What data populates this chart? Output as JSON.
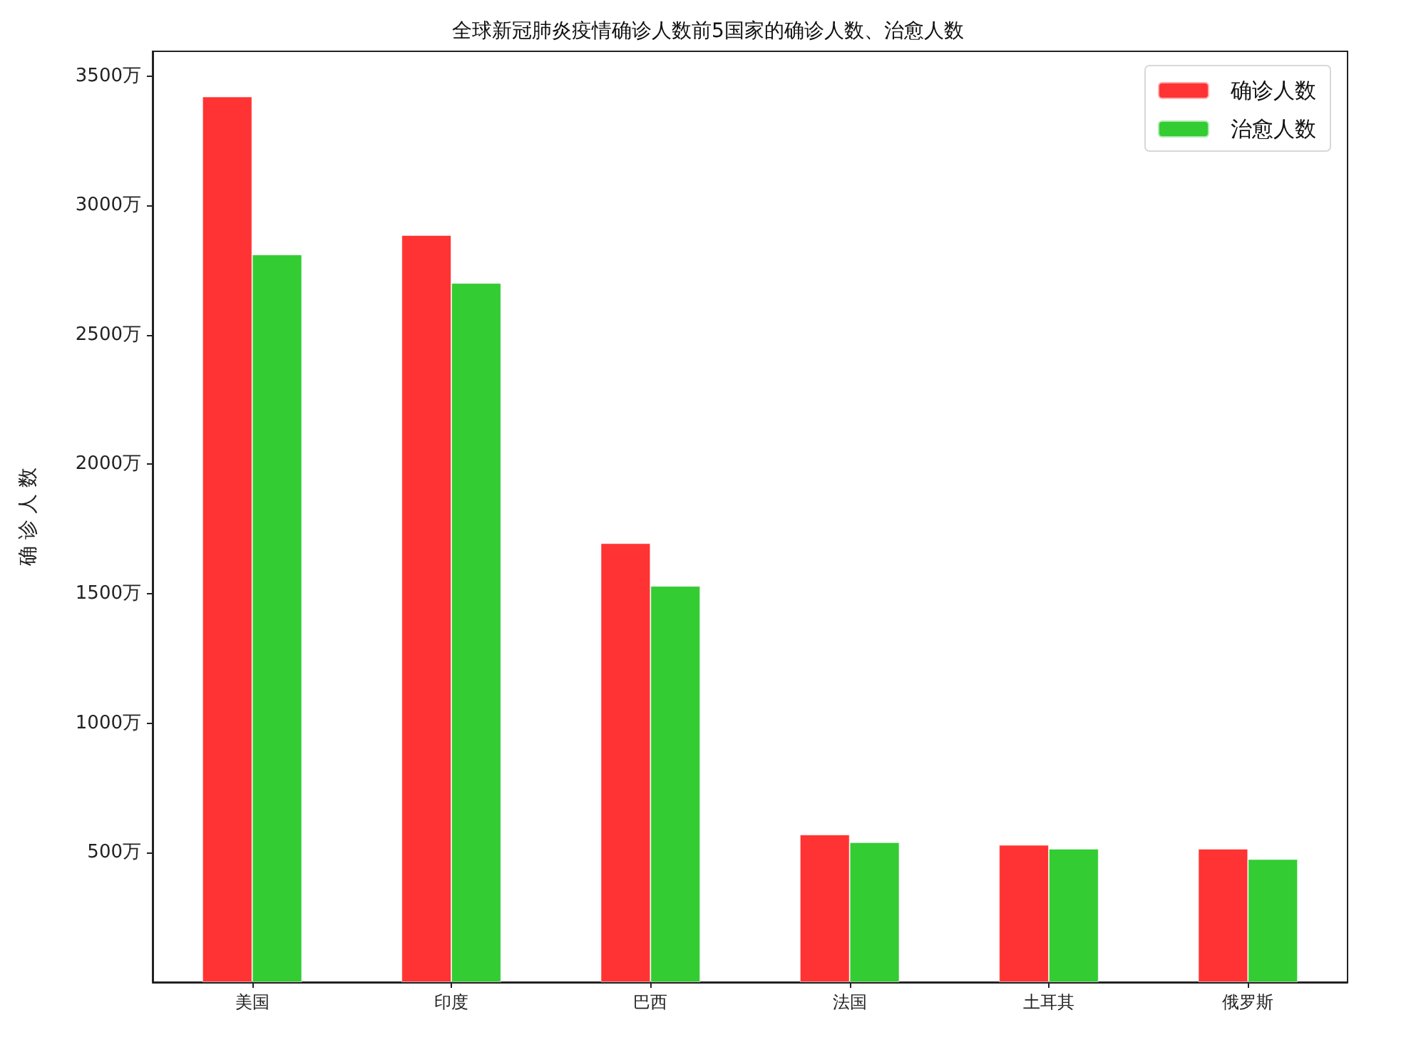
{
  "chart_data": {
    "type": "bar",
    "title": "全球新冠肺炎疫情确诊人数前5国家的确诊人数、治愈人数",
    "ylabel": "确 诊 人 数",
    "categories": [
      "美国",
      "印度",
      "巴西",
      "法国",
      "土耳其",
      "俄罗斯"
    ],
    "series": [
      {
        "name": "确诊人数",
        "color": "#ff3333",
        "values": [
          3420,
          2885,
          1695,
          570,
          530,
          515
        ]
      },
      {
        "name": "治愈人数",
        "color": "#33cc33",
        "values": [
          2810,
          2700,
          1530,
          540,
          515,
          475
        ]
      }
    ],
    "ylim": [
      0,
      3595
    ],
    "yticks": [
      {
        "value": 500,
        "label": "500万"
      },
      {
        "value": 1000,
        "label": "1000万"
      },
      {
        "value": 1500,
        "label": "1500万"
      },
      {
        "value": 2000,
        "label": "2000万"
      },
      {
        "value": 2500,
        "label": "2500万"
      },
      {
        "value": 3000,
        "label": "3000万"
      },
      {
        "value": 3500,
        "label": "3500万"
      }
    ],
    "legend": "top right"
  }
}
